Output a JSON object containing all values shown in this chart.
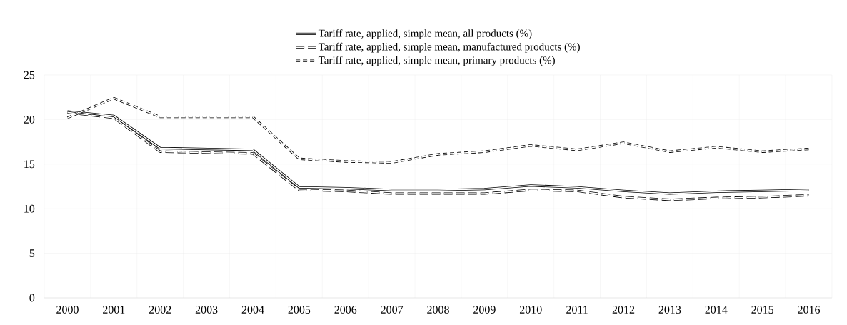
{
  "chart_data": {
    "type": "line",
    "categories": [
      "2000",
      "2001",
      "2002",
      "2003",
      "2004",
      "2005",
      "2006",
      "2007",
      "2008",
      "2009",
      "2010",
      "2011",
      "2012",
      "2013",
      "2014",
      "2015",
      "2016"
    ],
    "series": [
      {
        "name": "Tariff rate, applied, simple mean, all products (%)",
        "color": "#000000",
        "line_style": "solid",
        "values": [
          20.9,
          20.4,
          16.8,
          16.7,
          16.6,
          12.4,
          12.3,
          12.1,
          12.1,
          12.2,
          12.6,
          12.4,
          12.0,
          11.7,
          11.9,
          12.0,
          12.1
        ]
      },
      {
        "name": "Tariff rate, applied, simple mean, manufactured products (%)",
        "color": "#000000",
        "line_style": "dashed",
        "values": [
          20.8,
          20.2,
          16.4,
          16.3,
          16.2,
          12.1,
          12.0,
          11.7,
          11.7,
          11.7,
          12.1,
          12.0,
          11.3,
          11.0,
          11.2,
          11.3,
          11.5
        ]
      },
      {
        "name": "Tariff rate, applied, simple mean, primary products (%)",
        "color": "#000000",
        "line_style": "dotted",
        "values": [
          20.2,
          22.4,
          20.3,
          20.3,
          20.3,
          15.6,
          15.3,
          15.2,
          16.1,
          16.4,
          17.1,
          16.6,
          17.4,
          16.4,
          16.9,
          16.4,
          16.7
        ]
      }
    ],
    "ylim": [
      0,
      25
    ],
    "yticks": [
      0,
      5,
      10,
      15,
      20,
      25
    ],
    "grid": true,
    "legend": "top",
    "marker": "none"
  }
}
